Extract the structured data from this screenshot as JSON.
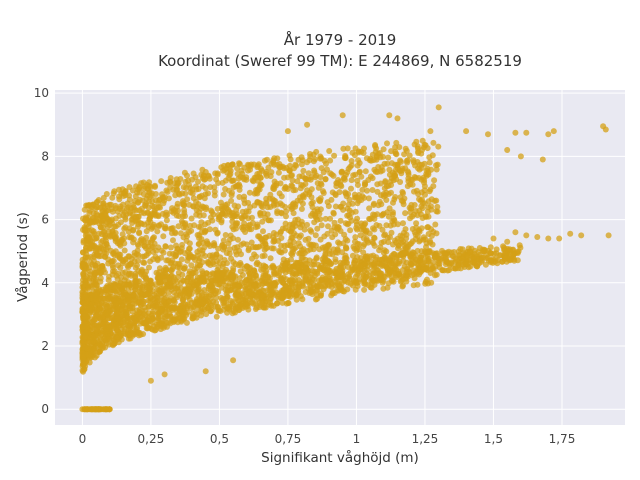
{
  "chart_data": {
    "type": "scatter",
    "title_lines": [
      "År 1979 - 2019",
      "Koordinat (Sweref 99 TM): E 244869, N 6582519"
    ],
    "xlabel": "Signifikant våghöjd (m)",
    "ylabel": "Vågperiod (s)",
    "xlim": [
      -0.1,
      1.98
    ],
    "ylim": [
      -0.5,
      10.1
    ],
    "x_ticks": [
      0,
      0.25,
      0.5,
      0.75,
      1,
      1.25,
      1.5,
      1.75
    ],
    "x_tick_labels": [
      "0",
      "0,25",
      "0,5",
      "0,75",
      "1",
      "1,25",
      "1,5",
      "1,75"
    ],
    "y_ticks": [
      0,
      2,
      4,
      6,
      8,
      10
    ],
    "y_tick_labels": [
      "0",
      "2",
      "4",
      "6",
      "8",
      "10"
    ],
    "marker_color": "#D4A017",
    "grid": true,
    "clusters": [
      {
        "name": "upper-band",
        "x_range": [
          0.0,
          1.3
        ],
        "y_lower": [
          1.2,
          4.0
        ],
        "y_upper": [
          6.2,
          8.6
        ]
      },
      {
        "name": "lower-band",
        "x_range": [
          0.0,
          1.6
        ],
        "y_lower": [
          1.0,
          4.7
        ],
        "y_upper": [
          3.5,
          5.2
        ]
      },
      {
        "name": "zero-line",
        "x_range": [
          0.0,
          0.1
        ],
        "y": 0
      }
    ],
    "outliers": [
      [
        1.15,
        9.2
      ],
      [
        1.3,
        9.55
      ],
      [
        1.12,
        9.3
      ],
      [
        0.95,
        9.3
      ],
      [
        1.27,
        8.8
      ],
      [
        1.4,
        8.8
      ],
      [
        1.48,
        8.7
      ],
      [
        1.58,
        8.75
      ],
      [
        1.62,
        8.75
      ],
      [
        1.7,
        8.7
      ],
      [
        1.72,
        8.8
      ],
      [
        1.9,
        8.95
      ],
      [
        1.91,
        8.85
      ],
      [
        1.55,
        8.2
      ],
      [
        1.6,
        8.0
      ],
      [
        1.68,
        7.9
      ],
      [
        0.75,
        8.8
      ],
      [
        0.82,
        9.0
      ],
      [
        1.45,
        5.1
      ],
      [
        1.5,
        5.4
      ],
      [
        1.55,
        5.3
      ],
      [
        1.58,
        5.6
      ],
      [
        1.62,
        5.5
      ],
      [
        1.66,
        5.45
      ],
      [
        1.7,
        5.4
      ],
      [
        1.74,
        5.4
      ],
      [
        1.78,
        5.55
      ],
      [
        1.82,
        5.5
      ],
      [
        1.92,
        5.5
      ],
      [
        0.35,
        4.6
      ],
      [
        0.4,
        4.3
      ],
      [
        0.43,
        4.55
      ],
      [
        0.3,
        4.35
      ],
      [
        0.65,
        5.4
      ],
      [
        0.58,
        5.2
      ],
      [
        0.85,
        6.1
      ],
      [
        0.92,
        5.9
      ],
      [
        0.78,
        5.5
      ],
      [
        0.45,
        1.2
      ],
      [
        0.55,
        1.55
      ],
      [
        0.3,
        1.1
      ],
      [
        0.25,
        0.9
      ]
    ],
    "zero_points": [
      [
        0.0,
        0
      ],
      [
        0.02,
        0
      ],
      [
        0.04,
        0
      ],
      [
        0.06,
        0
      ],
      [
        0.08,
        0
      ],
      [
        0.1,
        0
      ]
    ]
  }
}
